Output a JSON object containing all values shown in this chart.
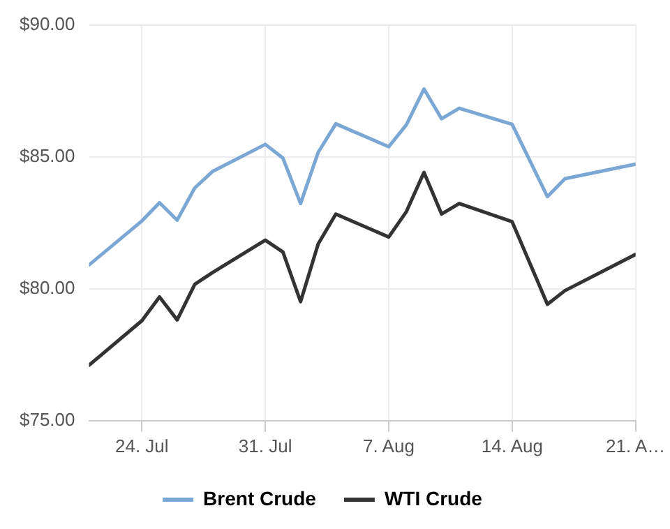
{
  "chart_data": {
    "type": "line",
    "x": [
      "--07-21",
      "--07-24",
      "--07-25",
      "--07-26",
      "--07-27",
      "--07-28",
      "--07-31",
      "--08-01",
      "--08-02",
      "--08-03",
      "--08-04",
      "--08-07",
      "--08-08",
      "--08-09",
      "--08-10",
      "--08-11",
      "--08-14",
      "--08-16",
      "--08-17",
      "--08-21"
    ],
    "series": [
      {
        "name": "Brent Crude",
        "color": "#7ba7d4",
        "values": [
          80.9,
          82.57,
          83.26,
          82.6,
          83.82,
          84.44,
          85.47,
          84.95,
          83.23,
          85.17,
          86.25,
          85.38,
          86.21,
          87.57,
          86.44,
          86.84,
          86.23,
          83.49,
          84.17,
          84.72
        ]
      },
      {
        "name": "WTI Crude",
        "color": "#333333",
        "values": [
          77.1,
          78.79,
          79.69,
          78.82,
          80.17,
          80.61,
          81.84,
          81.39,
          79.51,
          81.7,
          82.83,
          81.96,
          82.92,
          84.41,
          82.83,
          83.23,
          82.54,
          79.41,
          79.93,
          81.3
        ]
      }
    ],
    "xlim": [
      "--07-21",
      "--08-21"
    ],
    "xticks": [
      {
        "value": "--07-24",
        "label": "24. Jul"
      },
      {
        "value": "--07-31",
        "label": "31. Jul"
      },
      {
        "value": "--08-07",
        "label": "7. Aug"
      },
      {
        "value": "--08-14",
        "label": "14. Aug"
      },
      {
        "value": "--08-21",
        "label": "21. A…"
      }
    ],
    "ylim": [
      75,
      90
    ],
    "yticks": [
      {
        "value": 75,
        "label": "$75.00"
      },
      {
        "value": 80,
        "label": "$80.00"
      },
      {
        "value": 85,
        "label": "$85.00"
      },
      {
        "value": 90,
        "label": "$90.00"
      }
    ],
    "grid": true,
    "legend": "bottom",
    "marker": "none",
    "line_style": "solid"
  }
}
